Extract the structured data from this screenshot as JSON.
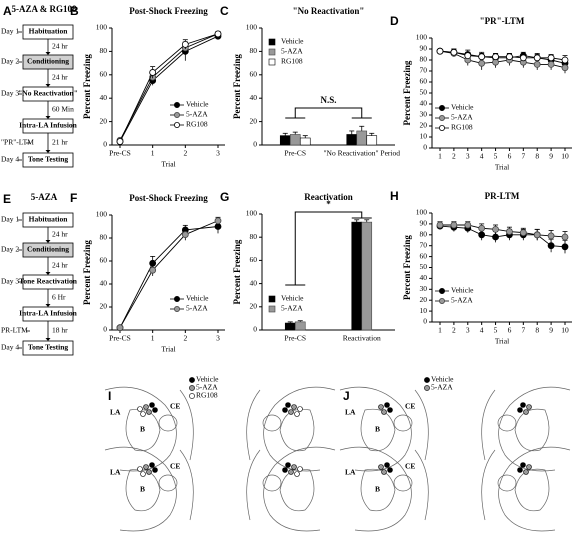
{
  "chart_data": [
    {
      "panel": "B",
      "type": "line",
      "title": "Post-Shock Freezing",
      "xlabel": "Trial",
      "ylabel": "Percent Freezing",
      "categories": [
        "Pre-CS",
        "1",
        "2",
        "3"
      ],
      "series": [
        {
          "name": "Vehicle",
          "color": "#000000",
          "values": [
            3,
            55,
            80,
            93
          ],
          "errors": [
            1,
            4,
            8,
            2
          ]
        },
        {
          "name": "5-AZA",
          "color": "#999999",
          "values": [
            4,
            58,
            83,
            95
          ],
          "errors": [
            1,
            4,
            5,
            2
          ]
        },
        {
          "name": "RG108",
          "color": "#ffffff",
          "values": [
            3,
            62,
            86,
            95
          ],
          "errors": [
            1,
            5,
            4,
            2
          ]
        }
      ],
      "ylim": [
        0,
        100
      ],
      "yticks": [
        0,
        20,
        40,
        60,
        80,
        100
      ],
      "legend": "lower right"
    },
    {
      "panel": "C",
      "type": "bar",
      "title": "\"No Reactivation\"",
      "ylabel": "Percent Freezing",
      "categories": [
        "Pre-CS",
        "\"No Reactivation\" Period"
      ],
      "series": [
        {
          "name": "Vehicle",
          "color": "#000000",
          "values": [
            8,
            9
          ],
          "errors": [
            2,
            3
          ]
        },
        {
          "name": "5-AZA",
          "color": "#999999",
          "values": [
            9,
            12
          ],
          "errors": [
            2,
            4
          ]
        },
        {
          "name": "RG108",
          "color": "#ffffff",
          "values": [
            6,
            8
          ],
          "errors": [
            2,
            2
          ]
        }
      ],
      "ylim": [
        0,
        100
      ],
      "yticks": [
        0,
        20,
        40,
        60,
        80,
        100
      ],
      "legend": "upper left",
      "annotation": "N.S."
    },
    {
      "panel": "D",
      "type": "line",
      "title": "\"PR\"-LTM",
      "xlabel": "Trial",
      "ylabel": "Percent Freezing",
      "categories": [
        "1",
        "2",
        "3",
        "4",
        "5",
        "6",
        "7",
        "8",
        "9",
        "10"
      ],
      "series": [
        {
          "name": "Vehicle",
          "color": "#000000",
          "values": [
            88,
            87,
            85,
            83,
            82,
            82,
            84,
            82,
            80,
            77
          ],
          "errors": [
            2,
            3,
            4,
            4,
            4,
            4,
            3,
            4,
            4,
            4
          ]
        },
        {
          "name": "5-AZA",
          "color": "#999999",
          "values": [
            88,
            86,
            80,
            77,
            78,
            80,
            78,
            76,
            76,
            73
          ],
          "errors": [
            2,
            3,
            5,
            6,
            5,
            5,
            5,
            5,
            5,
            5
          ]
        },
        {
          "name": "RG108",
          "color": "#ffffff",
          "values": [
            88,
            87,
            84,
            83,
            83,
            83,
            82,
            82,
            82,
            80
          ],
          "errors": [
            2,
            3,
            3,
            3,
            3,
            3,
            3,
            3,
            3,
            4
          ]
        }
      ],
      "ylim": [
        0,
        100
      ],
      "yticks": [
        0,
        10,
        20,
        30,
        40,
        50,
        60,
        70,
        80,
        90,
        100
      ],
      "legend": "lower left"
    },
    {
      "panel": "F",
      "type": "line",
      "title": "Post-Shock Freezing",
      "xlabel": "Trial",
      "ylabel": "Percent Freezing",
      "categories": [
        "Pre-CS",
        "1",
        "2",
        "3"
      ],
      "series": [
        {
          "name": "Vehicle",
          "color": "#000000",
          "values": [
            2,
            58,
            87,
            90
          ],
          "errors": [
            1,
            6,
            4,
            6
          ]
        },
        {
          "name": "5-AZA",
          "color": "#999999",
          "values": [
            2,
            52,
            83,
            95
          ],
          "errors": [
            1,
            5,
            5,
            3
          ]
        }
      ],
      "ylim": [
        0,
        100
      ],
      "yticks": [
        0,
        20,
        40,
        60,
        80,
        100
      ],
      "legend": "lower right"
    },
    {
      "panel": "G",
      "type": "bar",
      "title": "Reactivation",
      "ylabel": "Percent Freezing",
      "categories": [
        "Pre-CS",
        "Reactivation"
      ],
      "series": [
        {
          "name": "Vehicle",
          "color": "#000000",
          "values": [
            6,
            93
          ],
          "errors": [
            1,
            2
          ]
        },
        {
          "name": "5-AZA",
          "color": "#999999",
          "values": [
            7,
            93
          ],
          "errors": [
            1,
            2
          ]
        }
      ],
      "ylim": [
        0,
        100
      ],
      "yticks": [
        0,
        20,
        40,
        60,
        80,
        100
      ],
      "legend": "lower left",
      "annotation": "*"
    },
    {
      "panel": "H",
      "type": "line",
      "title": "PR-LTM",
      "xlabel": "Trial",
      "ylabel": "Percent Freezing",
      "categories": [
        "1",
        "2",
        "3",
        "4",
        "5",
        "6",
        "7",
        "8",
        "9",
        "10"
      ],
      "series": [
        {
          "name": "Vehicle",
          "color": "#000000",
          "values": [
            88,
            87,
            86,
            80,
            78,
            80,
            80,
            80,
            70,
            69
          ],
          "errors": [
            3,
            4,
            4,
            5,
            5,
            5,
            5,
            5,
            6,
            6
          ]
        },
        {
          "name": "5-AZA",
          "color": "#999999",
          "values": [
            89,
            89,
            89,
            86,
            85,
            83,
            82,
            80,
            79,
            78
          ],
          "errors": [
            3,
            3,
            3,
            4,
            4,
            4,
            4,
            5,
            5,
            5
          ]
        }
      ],
      "ylim": [
        0,
        100
      ],
      "yticks": [
        0,
        10,
        20,
        30,
        40,
        50,
        60,
        70,
        80,
        90,
        100
      ],
      "legend": "lower left"
    }
  ],
  "flowcharts": [
    {
      "panel": "A",
      "title": "5-AZA & RG108",
      "steps": [
        {
          "day": "Day 1",
          "box": "Habituation",
          "after": "24 hr"
        },
        {
          "day": "Day 2",
          "box": "Conditioning",
          "shaded": true,
          "after": "24 hr"
        },
        {
          "day": "Day 3",
          "box": "\"No Reactivation\"",
          "after": "60 Min"
        },
        {
          "box": "Intra-LA Infusion",
          "after": "21 hr",
          "side": "\"PR\"-LTM"
        },
        {
          "day": "Day 4",
          "box": "Tone Testing"
        }
      ]
    },
    {
      "panel": "E",
      "title": "5-AZA",
      "steps": [
        {
          "day": "Day 1",
          "box": "Habituation",
          "after": "24 hr"
        },
        {
          "day": "Day 2",
          "box": "Conditioning",
          "shaded": true,
          "after": "24 hr"
        },
        {
          "day": "Day 3",
          "box": "Tone Reactivation",
          "after": "6 Hr"
        },
        {
          "box": "Intra-LA Infusion",
          "after": "18 hr",
          "side": "PR-LTM"
        },
        {
          "day": "Day 4",
          "box": "Tone Testing"
        }
      ]
    }
  ],
  "brain_maps": [
    {
      "panel": "I",
      "legend": [
        {
          "name": "Vehicle",
          "color": "#000000"
        },
        {
          "name": "5-AZA",
          "color": "#999999"
        },
        {
          "name": "RG108",
          "color": "#ffffff"
        }
      ],
      "regions": [
        "LA",
        "CE",
        "B"
      ]
    },
    {
      "panel": "J",
      "legend": [
        {
          "name": "Vehicle",
          "color": "#000000"
        },
        {
          "name": "5-AZA",
          "color": "#999999"
        }
      ],
      "regions": [
        "LA",
        "CE",
        "B"
      ]
    }
  ]
}
